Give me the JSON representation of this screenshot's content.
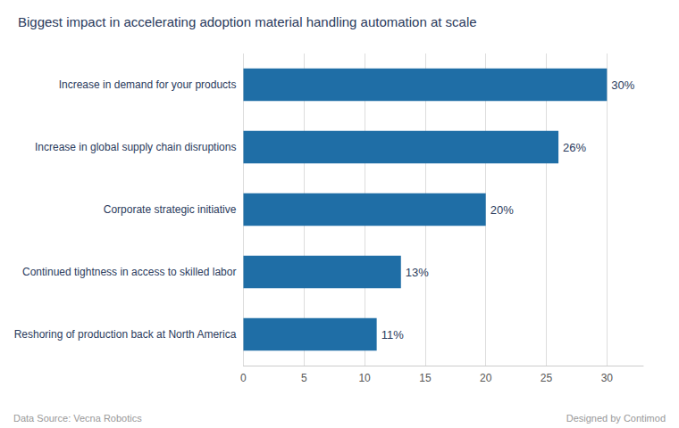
{
  "chart_data": {
    "type": "bar",
    "orientation": "horizontal",
    "title": "Biggest impact in accelerating adoption material handling automation at scale",
    "categories": [
      "Reshoring of production back at North America",
      "Continued tightness in access to skilled labor",
      "Corporate strategic initiative",
      "Increase in global supply chain disruptions",
      "Increase in demand for your products"
    ],
    "values": [
      11,
      13,
      20,
      26,
      30
    ],
    "value_labels": [
      "11%",
      "13%",
      "20%",
      "26%",
      "30%"
    ],
    "data_labels": true,
    "color": "#1F6EA6",
    "xlim": [
      0,
      33
    ],
    "xticks": [
      0,
      5,
      10,
      15,
      20,
      25,
      30
    ],
    "grid": true,
    "annotations": [
      "Data Source: Vecna Robotics",
      "Designed by Contimod"
    ]
  }
}
